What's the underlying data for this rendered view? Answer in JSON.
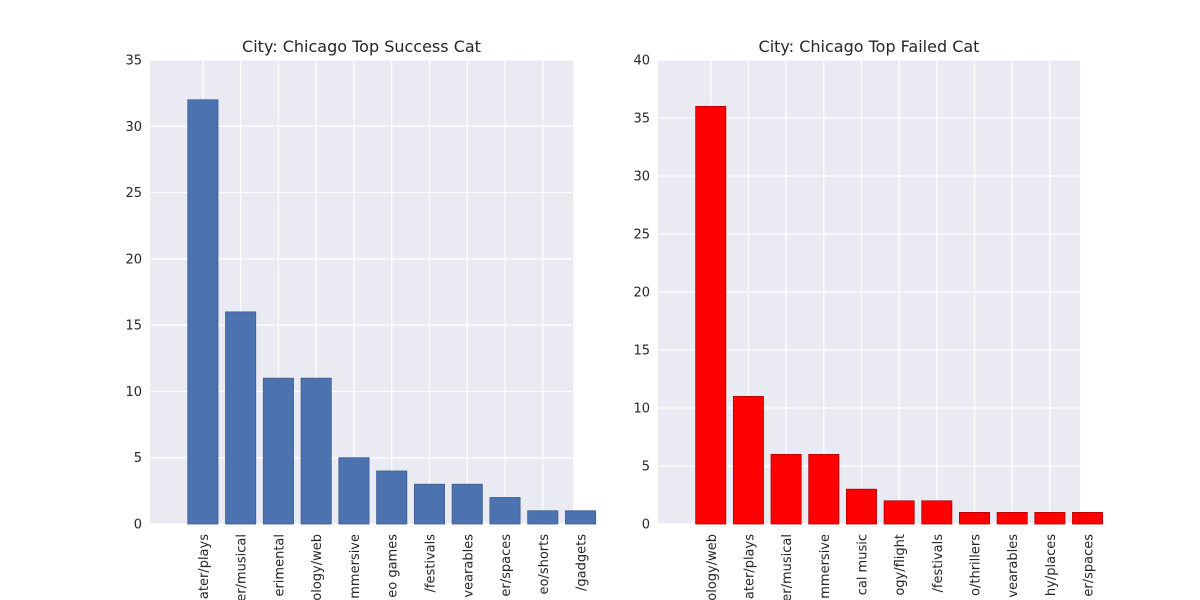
{
  "chart_data": [
    {
      "type": "bar",
      "title": "City: Chicago Top Success Cat",
      "categories": [
        "theater/plays",
        "theater/musical",
        "music/experimental",
        "technology/web",
        "theater/immersive",
        "games/video games",
        "film & video/festivals",
        "technology/wearables",
        "theater/spaces",
        "film & video/shorts",
        "technology/gadgets"
      ],
      "tick_labels": [
        "ater/plays",
        "er/musical",
        "erimental",
        "ology/web",
        "mmersive",
        "eo games",
        "/festivals",
        "vearables",
        "er/spaces",
        "eo/shorts",
        "/gadgets"
      ],
      "values": [
        32,
        16,
        11,
        11,
        5,
        4,
        3,
        3,
        2,
        1,
        1
      ],
      "ylim": [
        0,
        35
      ],
      "yticks": [
        0,
        5,
        10,
        15,
        20,
        25,
        30,
        35
      ],
      "bar_color": "#4c72b0",
      "grid": true,
      "background": "#eaeaf2"
    },
    {
      "type": "bar",
      "title": "City: Chicago Top Failed Cat",
      "categories": [
        "technology/web",
        "theater/plays",
        "theater/musical",
        "theater/immersive",
        "music/classical music",
        "technology/flight",
        "film & video/festivals",
        "film & video/thrillers",
        "technology/wearables",
        "photography/places",
        "theater/spaces"
      ],
      "tick_labels": [
        "ology/web",
        "ater/plays",
        "er/musical",
        "mmersive",
        "cal music",
        "ogy/flight",
        "/festivals",
        "o/thrillers",
        "vearables",
        "hy/places",
        "er/spaces"
      ],
      "values": [
        36,
        11,
        6,
        6,
        3,
        2,
        2,
        1,
        1,
        1,
        1
      ],
      "ylim": [
        0,
        40
      ],
      "yticks": [
        0,
        5,
        10,
        15,
        20,
        25,
        30,
        35,
        40
      ],
      "bar_color": "#ff0000",
      "grid": true,
      "background": "#eaeaf2"
    }
  ]
}
